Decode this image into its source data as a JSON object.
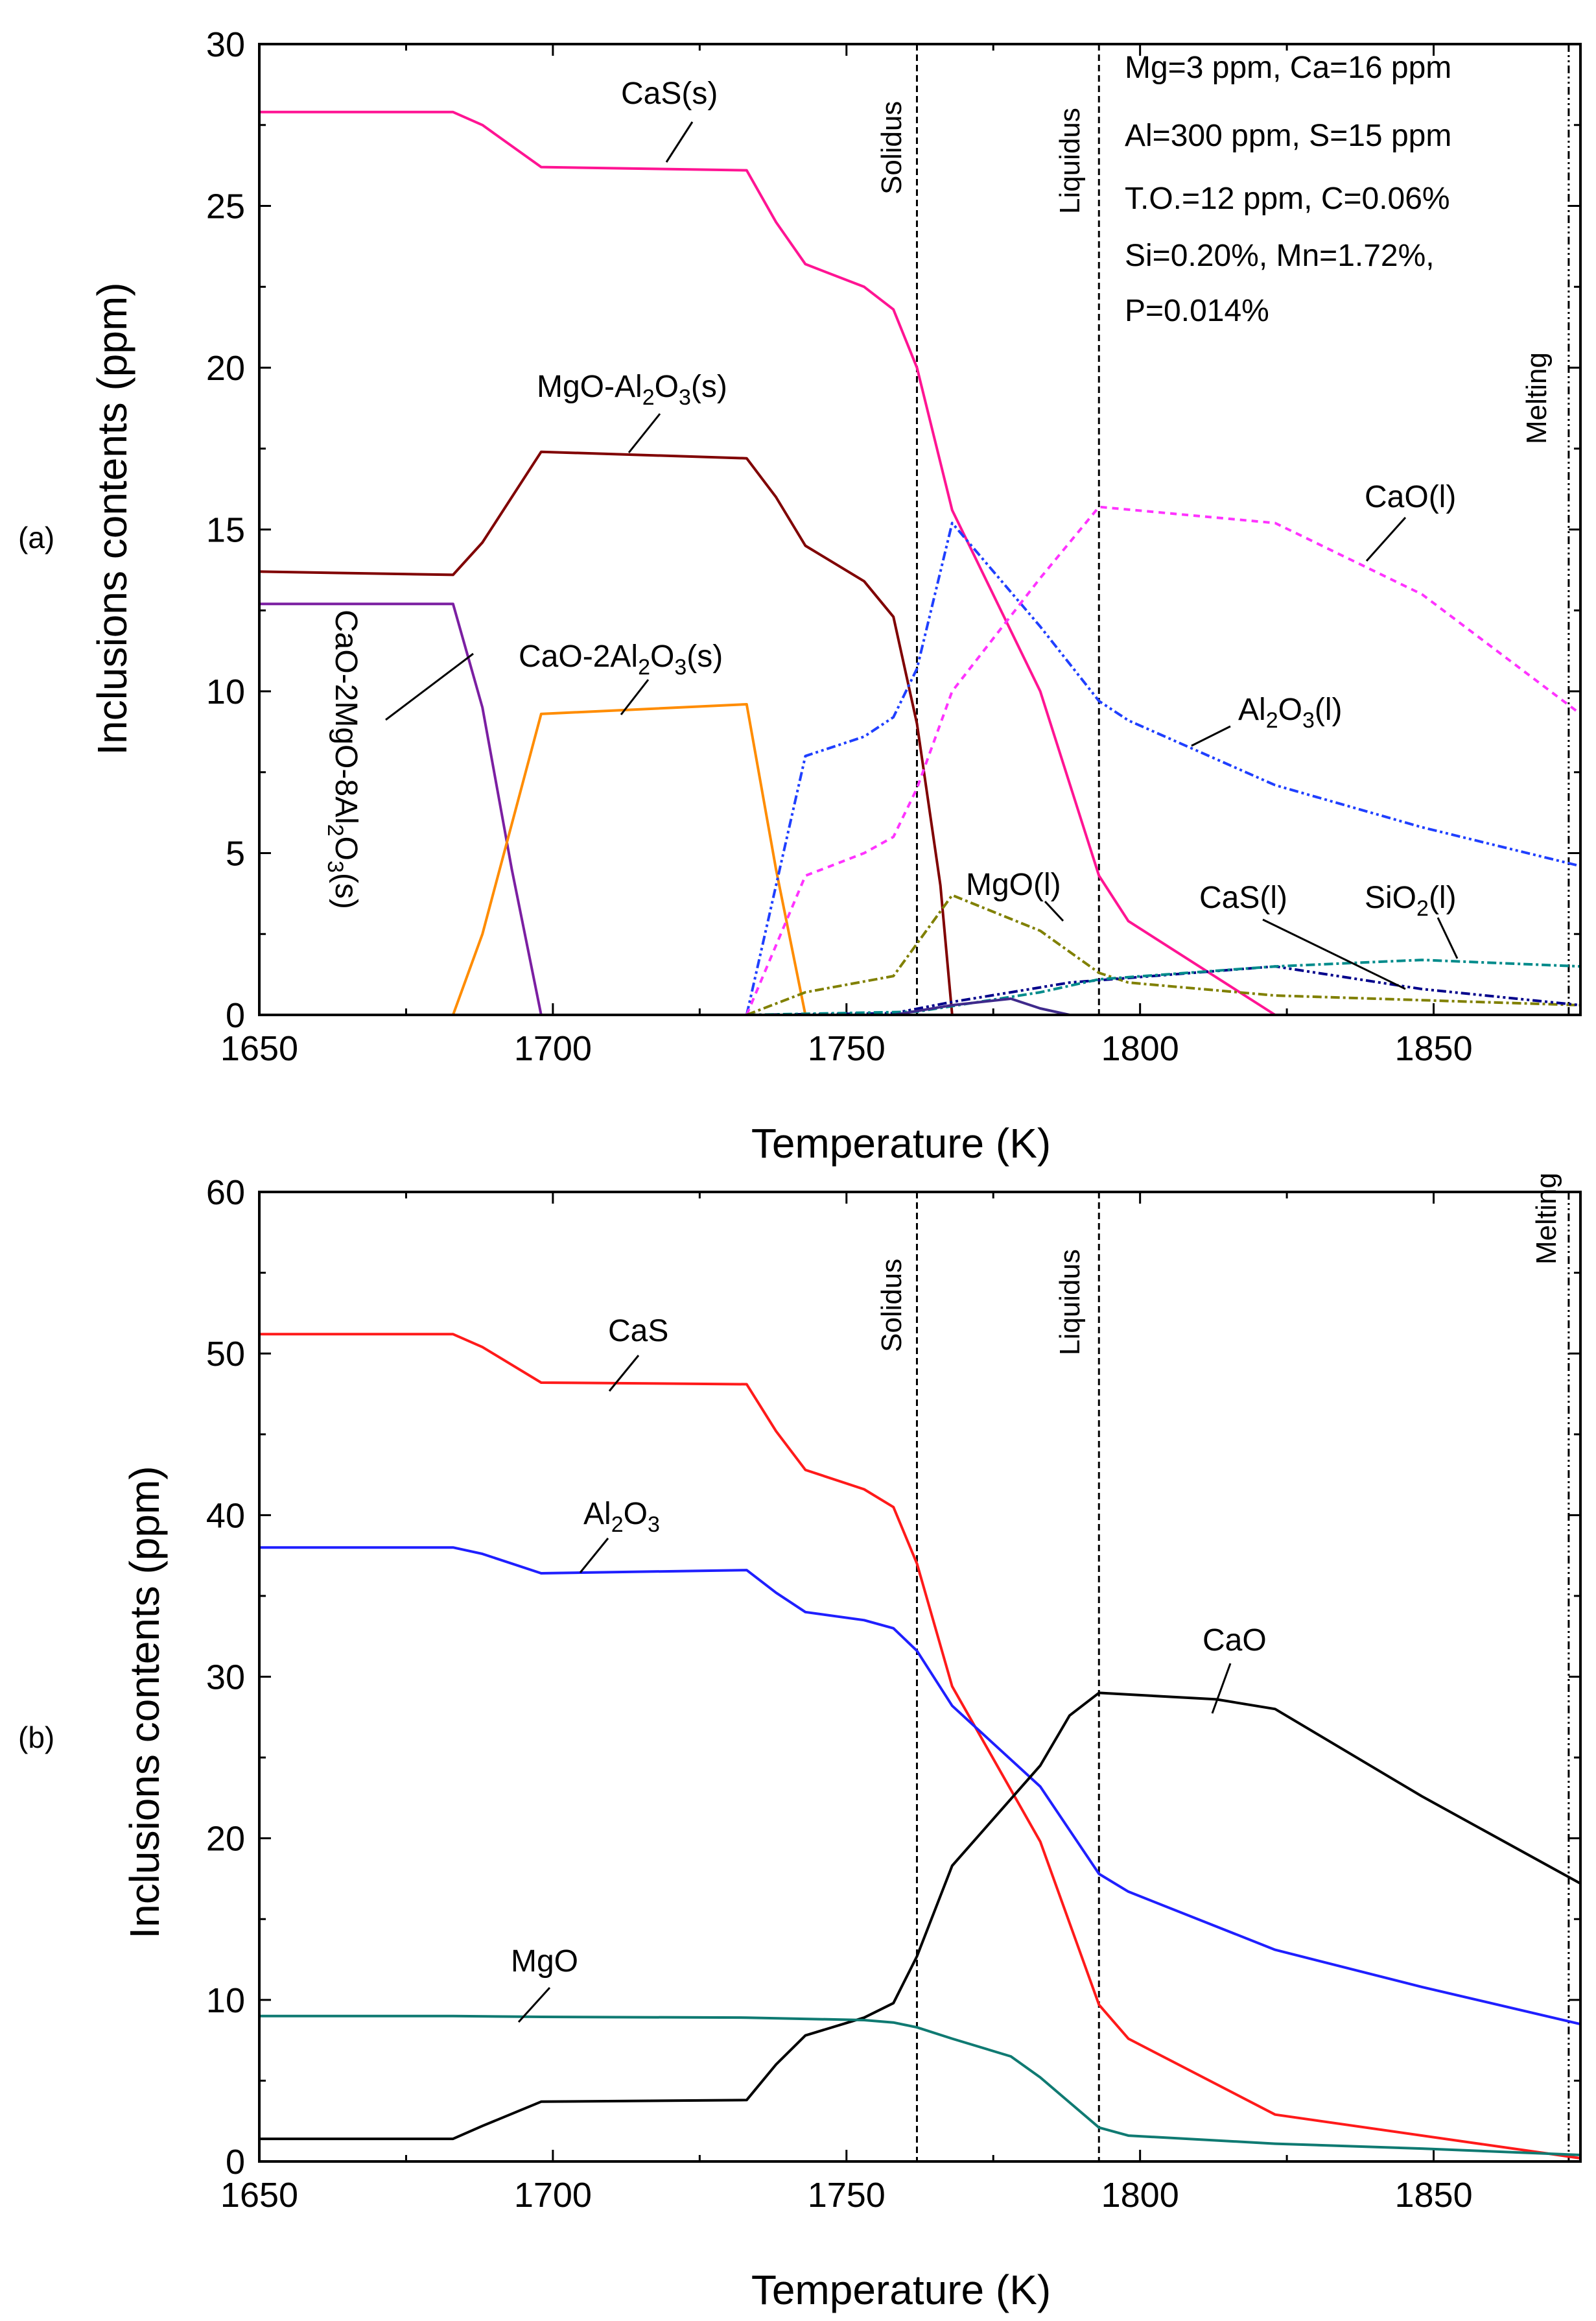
{
  "chart_data": [
    {
      "type": "line",
      "panel_label": "(a)",
      "xlabel": "Temperature (K)",
      "ylabel": "Inclusions contents (ppm)",
      "xlim": [
        1650,
        1875
      ],
      "ylim": [
        0,
        30
      ],
      "xticks": [
        1650,
        1700,
        1750,
        1800,
        1850
      ],
      "yticks": [
        0,
        5,
        10,
        15,
        20,
        25,
        30
      ],
      "vlines": [
        {
          "name": "solidus",
          "x": 1762,
          "label": "Solidus",
          "style": "dashed"
        },
        {
          "name": "liquidus",
          "x": 1793,
          "label": "Liquidus",
          "style": "dashed"
        },
        {
          "name": "melting",
          "x": 1873,
          "label": "Melting",
          "style": "dashdot"
        }
      ],
      "conditions": [
        "Mg=3 ppm, Ca=16 ppm",
        "Al=300 ppm, S=15 ppm",
        "T.O.=12 ppm, C=0.06%",
        "Si=0.20%, Mn=1.72%,",
        "P=0.014%"
      ],
      "series": [
        {
          "name": "CaS(s)",
          "color": "#ff1493",
          "dash": "",
          "points": [
            [
              1650,
              27.9
            ],
            [
              1683,
              27.9
            ],
            [
              1688,
              27.5
            ],
            [
              1698,
              26.2
            ],
            [
              1733,
              26.1
            ],
            [
              1738,
              24.5
            ],
            [
              1743,
              23.2
            ],
            [
              1753,
              22.5
            ],
            [
              1758,
              21.8
            ],
            [
              1762,
              20
            ],
            [
              1768,
              15.6
            ],
            [
              1783,
              10
            ],
            [
              1793,
              4.3
            ],
            [
              1798,
              2.9
            ],
            [
              1823,
              0
            ],
            [
              1875,
              0
            ]
          ]
        },
        {
          "name": "MgO-Al2O3(s)",
          "color": "#800000",
          "dash": "",
          "points": [
            [
              1650,
              13.7
            ],
            [
              1683,
              13.6
            ],
            [
              1688,
              14.6
            ],
            [
              1698,
              17.4
            ],
            [
              1733,
              17.2
            ],
            [
              1738,
              16
            ],
            [
              1743,
              14.5
            ],
            [
              1753,
              13.4
            ],
            [
              1758,
              12.3
            ],
            [
              1762,
              9
            ],
            [
              1766,
              4
            ],
            [
              1768,
              0
            ],
            [
              1875,
              0
            ]
          ]
        },
        {
          "name": "CaO-2MgO-8Al2O3(s)",
          "color": "#7b1fa2",
          "dash": "",
          "points": [
            [
              1650,
              12.7
            ],
            [
              1683,
              12.7
            ],
            [
              1688,
              9.5
            ],
            [
              1693,
              4.5
            ],
            [
              1698,
              0
            ],
            [
              1875,
              0
            ]
          ]
        },
        {
          "name": "CaO-2Al2O3(s)",
          "color": "#ff8c00",
          "dash": "",
          "points": [
            [
              1650,
              0
            ],
            [
              1683,
              0
            ],
            [
              1688,
              2.5
            ],
            [
              1698,
              9.3
            ],
            [
              1733,
              9.6
            ],
            [
              1738,
              4.5
            ],
            [
              1743,
              0
            ],
            [
              1875,
              0
            ]
          ]
        },
        {
          "name": "Al2O3(l)",
          "color": "#1f3fff",
          "dash": "14,5,4,5,4,5",
          "points": [
            [
              1733,
              0
            ],
            [
              1743,
              8
            ],
            [
              1753,
              8.6
            ],
            [
              1758,
              9.2
            ],
            [
              1762,
              10.7
            ],
            [
              1768,
              15.2
            ],
            [
              1783,
              12
            ],
            [
              1793,
              9.7
            ],
            [
              1798,
              9.1
            ],
            [
              1823,
              7.1
            ],
            [
              1848,
              5.8
            ],
            [
              1875,
              4.6
            ]
          ]
        },
        {
          "name": "CaO(l)",
          "color": "#ff33ff",
          "dash": "10,8",
          "points": [
            [
              1733,
              0
            ],
            [
              1743,
              4.3
            ],
            [
              1753,
              5
            ],
            [
              1758,
              5.5
            ],
            [
              1762,
              7
            ],
            [
              1768,
              10
            ],
            [
              1783,
              13.5
            ],
            [
              1793,
              15.7
            ],
            [
              1823,
              15.2
            ],
            [
              1848,
              13
            ],
            [
              1875,
              9.3
            ]
          ]
        },
        {
          "name": "MgO(l)",
          "color": "#808000",
          "dash": "14,5,4,5",
          "points": [
            [
              1733,
              0
            ],
            [
              1743,
              0.7
            ],
            [
              1758,
              1.2
            ],
            [
              1768,
              3.7
            ],
            [
              1783,
              2.6
            ],
            [
              1793,
              1.3
            ],
            [
              1798,
              1
            ],
            [
              1823,
              0.6
            ],
            [
              1875,
              0.3
            ]
          ]
        },
        {
          "name": "CaS(l)",
          "color": "#00008b",
          "dash": "14,5,4,5,4,5",
          "points": [
            [
              1733,
              0
            ],
            [
              1758,
              0.05
            ],
            [
              1768,
              0.4
            ],
            [
              1778,
              0.7
            ],
            [
              1788,
              1
            ],
            [
              1823,
              1.5
            ],
            [
              1848,
              0.8
            ],
            [
              1875,
              0.3
            ]
          ]
        },
        {
          "name": "SiO2(l)",
          "color": "#008b8b",
          "dash": "14,5,4,5",
          "points": [
            [
              1733,
              0
            ],
            [
              1762,
              0.1
            ],
            [
              1783,
              0.7
            ],
            [
              1793,
              1.1
            ],
            [
              1823,
              1.5
            ],
            [
              1848,
              1.7
            ],
            [
              1875,
              1.5
            ]
          ]
        },
        {
          "name": "minor-purple",
          "color": "#3f2a8c",
          "dash": "",
          "points": [
            [
              1758,
              0
            ],
            [
              1768,
              0.3
            ],
            [
              1778,
              0.5
            ],
            [
              1783,
              0.2
            ],
            [
              1788,
              0
            ],
            [
              1875,
              0
            ]
          ]
        }
      ],
      "annotations": [
        "CaS(s)",
        "MgO-Al2O3(s)",
        "CaO-2MgO-8Al2O3(s)",
        "CaO-2Al2O3(s)",
        "Al2O3(l)",
        "CaO(l)",
        "MgO(l)",
        "CaS(l)",
        "SiO2(l)"
      ]
    },
    {
      "type": "line",
      "panel_label": "(b)",
      "xlabel": "Temperature (K)",
      "ylabel": "Inclusions contents (ppm)",
      "xlim": [
        1650,
        1875
      ],
      "ylim": [
        0,
        60
      ],
      "xticks": [
        1650,
        1700,
        1750,
        1800,
        1850
      ],
      "yticks": [
        0,
        10,
        20,
        30,
        40,
        50,
        60
      ],
      "vlines": [
        {
          "name": "solidus",
          "x": 1762,
          "label": "Solidus",
          "style": "dashed"
        },
        {
          "name": "liquidus",
          "x": 1793,
          "label": "Liquidus",
          "style": "dashed"
        },
        {
          "name": "melting",
          "x": 1873,
          "label": "Melting",
          "style": "dashdot"
        }
      ],
      "series": [
        {
          "name": "CaS",
          "color": "#ff1a1a",
          "dash": "",
          "points": [
            [
              1650,
              51.2
            ],
            [
              1683,
              51.2
            ],
            [
              1688,
              50.4
            ],
            [
              1698,
              48.2
            ],
            [
              1733,
              48.1
            ],
            [
              1738,
              45.2
            ],
            [
              1743,
              42.8
            ],
            [
              1753,
              41.6
            ],
            [
              1758,
              40.5
            ],
            [
              1762,
              37
            ],
            [
              1768,
              29.4
            ],
            [
              1783,
              19.8
            ],
            [
              1793,
              9.7
            ],
            [
              1798,
              7.6
            ],
            [
              1823,
              2.9
            ],
            [
              1875,
              0.2
            ]
          ]
        },
        {
          "name": "Al2O3",
          "color": "#1f1fff",
          "dash": "",
          "points": [
            [
              1650,
              38
            ],
            [
              1683,
              38
            ],
            [
              1688,
              37.6
            ],
            [
              1698,
              36.4
            ],
            [
              1733,
              36.6
            ],
            [
              1738,
              35.2
            ],
            [
              1743,
              34
            ],
            [
              1753,
              33.5
            ],
            [
              1758,
              33
            ],
            [
              1762,
              31.6
            ],
            [
              1768,
              28.2
            ],
            [
              1783,
              23.2
            ],
            [
              1793,
              17.8
            ],
            [
              1798,
              16.7
            ],
            [
              1823,
              13.1
            ],
            [
              1848,
              10.8
            ],
            [
              1875,
              8.5
            ]
          ]
        },
        {
          "name": "CaO",
          "color": "#000000",
          "dash": "",
          "points": [
            [
              1650,
              1.4
            ],
            [
              1683,
              1.4
            ],
            [
              1688,
              2.2
            ],
            [
              1698,
              3.7
            ],
            [
              1733,
              3.8
            ],
            [
              1738,
              6
            ],
            [
              1743,
              7.8
            ],
            [
              1753,
              8.9
            ],
            [
              1758,
              9.8
            ],
            [
              1762,
              12.7
            ],
            [
              1768,
              18.3
            ],
            [
              1783,
              24.5
            ],
            [
              1788,
              27.6
            ],
            [
              1793,
              29
            ],
            [
              1813,
              28.6
            ],
            [
              1823,
              28
            ],
            [
              1848,
              22.6
            ],
            [
              1875,
              17.2
            ]
          ]
        },
        {
          "name": "MgO",
          "color": "#0f7a72",
          "dash": "",
          "points": [
            [
              1650,
              9
            ],
            [
              1683,
              9
            ],
            [
              1698,
              8.95
            ],
            [
              1733,
              8.9
            ],
            [
              1753,
              8.75
            ],
            [
              1758,
              8.6
            ],
            [
              1762,
              8.3
            ],
            [
              1768,
              7.6
            ],
            [
              1778,
              6.5
            ],
            [
              1783,
              5.2
            ],
            [
              1793,
              2.1
            ],
            [
              1798,
              1.6
            ],
            [
              1823,
              1.1
            ],
            [
              1848,
              0.8
            ],
            [
              1875,
              0.4
            ]
          ]
        }
      ],
      "annotations": [
        "CaS",
        "Al2O3",
        "CaO",
        "MgO"
      ]
    }
  ]
}
